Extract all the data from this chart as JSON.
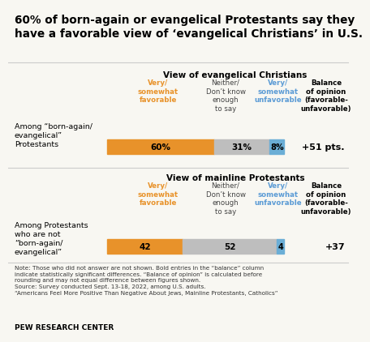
{
  "title_line1": "60% of born-again or evangelical Protestants say they",
  "title_line2": "have a favorable view of ‘evangelical Christians’ in U.S.",
  "section1_title": "View of evangelical Christians",
  "section2_title": "View of mainline Protestants",
  "col_headers": {
    "favorable": "Very/\nsomewhat\nfavorable",
    "neither": "Neither/\nDon’t know\nenough\nto say",
    "unfavorable": "Very/\nsomewhat\nunfavorable",
    "balance": "Balance\nof opinion\n(favorable-\nunfavorable)"
  },
  "row1_label": "Among “born-again/\nevangelical”\nProtestants",
  "row1_favorable": 60,
  "row1_neither": 31,
  "row1_unfavorable": 8,
  "row1_balance": "+51 pts.",
  "row1_fav_label": "60%",
  "row1_neither_label": "31%",
  "row1_unf_label": "8%",
  "row2_label": "Among Protestants\nwho are not\n“born-again/\nevangelical”",
  "row2_favorable": 42,
  "row2_neither": 52,
  "row2_unfavorable": 4,
  "row2_balance": "+37",
  "row2_fav_label": "42",
  "row2_neither_label": "52",
  "row2_unf_label": "4",
  "color_favorable": "#E8922A",
  "color_neither": "#BEBEBE",
  "color_unfavorable": "#6BAED6",
  "color_favorable_text": "#E8922A",
  "color_unfavorable_text": "#5B9BD5",
  "note_text": "Note: Those who did not answer are not shown. Bold entries in the “balance” column\nindicate statistically significant differences. “Balance of opinion” is calculated before\nrounding and may not equal difference between figures shown.\nSource: Survey conducted Sept. 13-18, 2022, among U.S. adults.\n“Americans Feel More Positive Than Negative About Jews, Mainline Protestants, Catholics”",
  "footer": "PEW RESEARCH CENTER",
  "bg_color": "#F8F7F2"
}
